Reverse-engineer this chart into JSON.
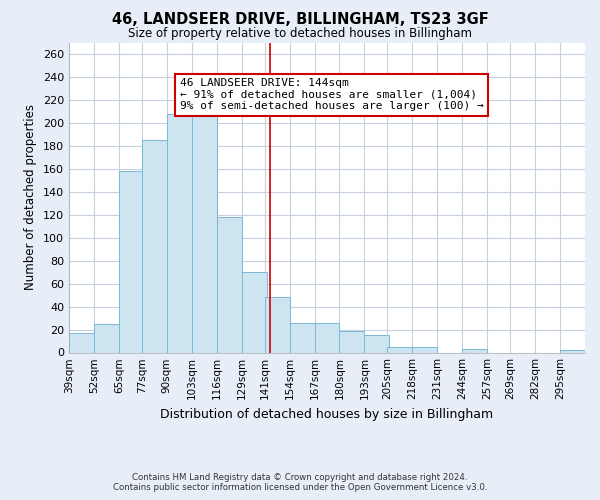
{
  "title": "46, LANDSEER DRIVE, BILLINGHAM, TS23 3GF",
  "subtitle": "Size of property relative to detached houses in Billingham",
  "xlabel": "Distribution of detached houses by size in Billingham",
  "ylabel": "Number of detached properties",
  "bin_labels": [
    "39sqm",
    "52sqm",
    "65sqm",
    "77sqm",
    "90sqm",
    "103sqm",
    "116sqm",
    "129sqm",
    "141sqm",
    "154sqm",
    "167sqm",
    "180sqm",
    "193sqm",
    "205sqm",
    "218sqm",
    "231sqm",
    "244sqm",
    "257sqm",
    "269sqm",
    "282sqm",
    "295sqm"
  ],
  "bar_values": [
    17,
    25,
    158,
    185,
    208,
    213,
    118,
    70,
    48,
    26,
    26,
    19,
    15,
    5,
    5,
    0,
    3,
    0,
    0,
    0,
    2
  ],
  "bin_edges": [
    39,
    52,
    65,
    77,
    90,
    103,
    116,
    129,
    141,
    154,
    167,
    180,
    193,
    205,
    218,
    231,
    244,
    257,
    269,
    282,
    295
  ],
  "bar_color": "#cce5f0",
  "bar_edge_color": "#7ab8d4",
  "vline_x": 144,
  "vline_color": "#cc0000",
  "annotation_text": "46 LANDSEER DRIVE: 144sqm\n← 91% of detached houses are smaller (1,004)\n9% of semi-detached houses are larger (100) →",
  "annotation_box_edge_color": "#cc0000",
  "ylim": [
    0,
    270
  ],
  "yticks": [
    0,
    20,
    40,
    60,
    80,
    100,
    120,
    140,
    160,
    180,
    200,
    220,
    240,
    260
  ],
  "footer_line1": "Contains HM Land Registry data © Crown copyright and database right 2024.",
  "footer_line2": "Contains public sector information licensed under the Open Government Licence v3.0.",
  "bg_color": "#e8eef8",
  "plot_bg_color": "#ffffff",
  "grid_color": "#c8d0e0"
}
